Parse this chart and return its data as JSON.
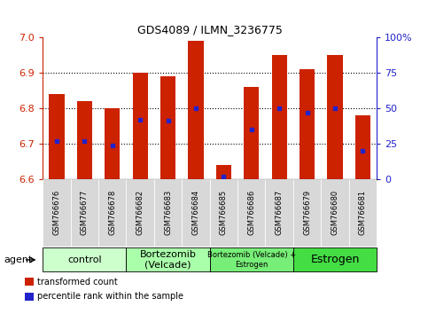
{
  "title": "GDS4089 / ILMN_3236775",
  "samples": [
    "GSM766676",
    "GSM766677",
    "GSM766678",
    "GSM766682",
    "GSM766683",
    "GSM766684",
    "GSM766685",
    "GSM766686",
    "GSM766687",
    "GSM766679",
    "GSM766680",
    "GSM766681"
  ],
  "transformed_counts": [
    6.84,
    6.82,
    6.8,
    6.9,
    6.89,
    6.99,
    6.64,
    6.86,
    6.95,
    6.91,
    6.95,
    6.78
  ],
  "percentile_ranks": [
    27,
    27,
    24,
    42,
    41,
    50,
    2,
    35,
    50,
    47,
    50,
    20
  ],
  "baseline": 6.6,
  "ylim_left": [
    6.6,
    7.0
  ],
  "ylim_right": [
    0,
    100
  ],
  "yticks_left": [
    6.6,
    6.7,
    6.8,
    6.9,
    7.0
  ],
  "yticks_right": [
    0,
    25,
    50,
    75,
    100
  ],
  "ytick_labels_right": [
    "0",
    "25",
    "50",
    "75",
    "100%"
  ],
  "groups": [
    {
      "label": "control",
      "start": 0,
      "end": 3,
      "color": "#ccffcc",
      "fontsize": 8
    },
    {
      "label": "Bortezomib\n(Velcade)",
      "start": 3,
      "end": 6,
      "color": "#aaffaa",
      "fontsize": 8
    },
    {
      "label": "Bortezomib (Velcade) +\nEstrogen",
      "start": 6,
      "end": 9,
      "color": "#77ee77",
      "fontsize": 6
    },
    {
      "label": "Estrogen",
      "start": 9,
      "end": 12,
      "color": "#44dd44",
      "fontsize": 9
    }
  ],
  "bar_color": "#cc2200",
  "percentile_color": "#2222cc",
  "bar_width": 0.55,
  "agent_label": "agent",
  "legend_items": [
    {
      "label": "transformed count",
      "color": "#cc2200"
    },
    {
      "label": "percentile rank within the sample",
      "color": "#2222cc"
    }
  ],
  "tick_label_color_left": "#cc2200",
  "tick_label_color_right": "#2222cc",
  "plot_bg": "#ffffff",
  "gridlines": [
    6.7,
    6.8,
    6.9
  ]
}
